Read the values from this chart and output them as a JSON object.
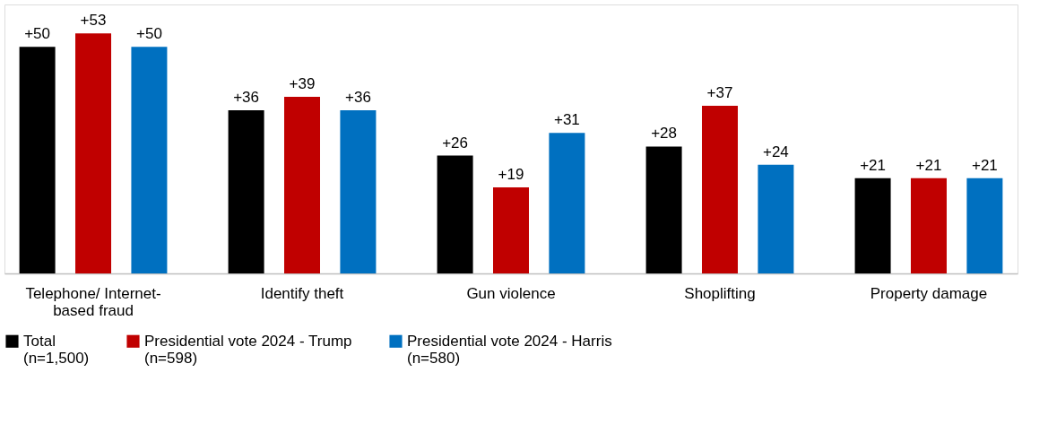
{
  "chart_data": {
    "type": "bar",
    "categories": [
      "Telephone/ Internet-based fraud",
      "Identify theft",
      "Gun violence",
      "Shoplifting",
      "Property damage"
    ],
    "series": [
      {
        "name": "Total (n=1,500)",
        "color": "#000000",
        "values": [
          50,
          36,
          26,
          28,
          21
        ],
        "value_labels": [
          "+50",
          "+36",
          "+26",
          "+28",
          "+21"
        ]
      },
      {
        "name": "Presidential vote 2024 - Trump (n=598)",
        "color": "#c00000",
        "values": [
          53,
          39,
          19,
          37,
          21
        ],
        "value_labels": [
          "+53",
          "+39",
          "+19",
          "+37",
          "+21"
        ]
      },
      {
        "name": "Presidential vote 2024 - Harris (n=580)",
        "color": "#0070c0",
        "values": [
          50,
          36,
          31,
          24,
          21
        ],
        "value_labels": [
          "+50",
          "+36",
          "+31",
          "+24",
          "+21"
        ]
      }
    ],
    "legend": "bottom",
    "grid": false
  }
}
